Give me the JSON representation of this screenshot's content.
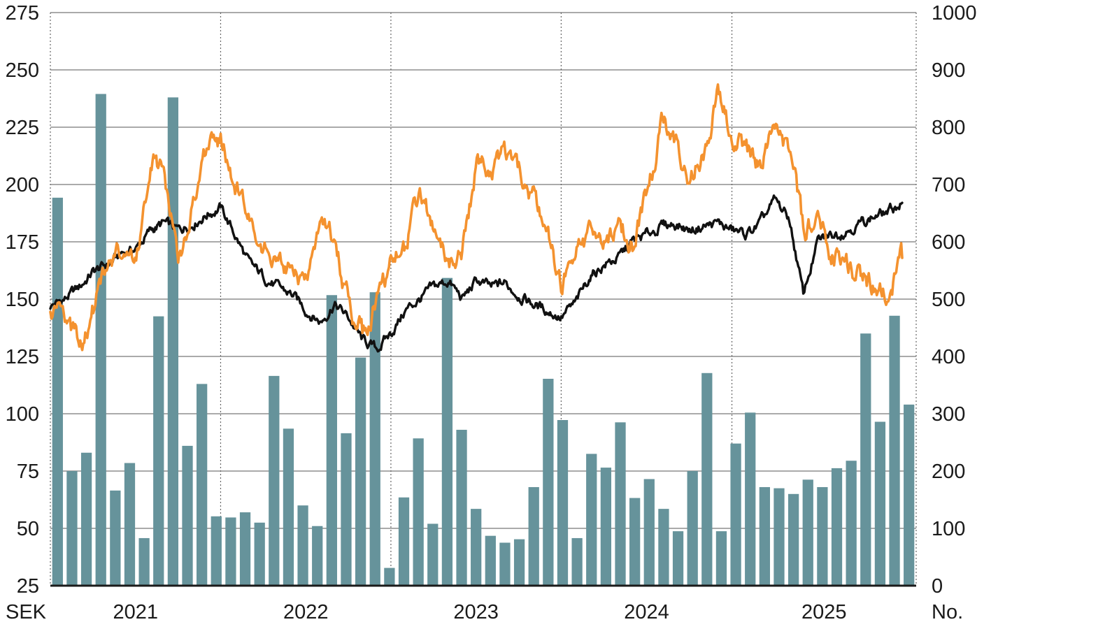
{
  "chart_data": {
    "type": "bar+line",
    "left_axis": {
      "unit_label": "SEK",
      "range": [
        25,
        275
      ],
      "ticks": [
        "25",
        "50",
        "75",
        "100",
        "125",
        "150",
        "175",
        "200",
        "225",
        "250",
        "275"
      ]
    },
    "right_axis": {
      "unit_label": "No.",
      "range": [
        0,
        1000
      ],
      "ticks": [
        "0",
        "100",
        "200",
        "300",
        "400",
        "500",
        "600",
        "700",
        "800",
        "900",
        "1000"
      ]
    },
    "x_axis": {
      "range": [
        "2020-07-01",
        "2025-07-31"
      ],
      "year_labels": [
        "2021",
        "2022",
        "2023",
        "2024",
        "2025"
      ],
      "year_dividers": [
        "2021-07-01",
        "2022-07-01",
        "2023-07-01",
        "2024-07-01"
      ],
      "grid": "dotted vertical at year boundaries, solid horizontal at left-axis ticks"
    },
    "colors": {
      "bars": "#66939b",
      "black_line": "#111111",
      "orange_line": "#f4922f",
      "grid": "#555555"
    },
    "bars": {
      "axis": "right",
      "months": [
        "2020-07",
        "2020-08",
        "2020-09",
        "2020-10",
        "2020-11",
        "2020-12",
        "2021-01",
        "2021-02",
        "2021-03",
        "2021-04",
        "2021-05",
        "2021-06",
        "2021-07",
        "2021-08",
        "2021-09",
        "2021-10",
        "2021-11",
        "2021-12",
        "2022-01",
        "2022-02",
        "2022-03",
        "2022-04",
        "2022-05",
        "2022-06",
        "2022-07",
        "2022-08",
        "2022-09",
        "2022-10",
        "2022-11",
        "2022-12",
        "2023-01",
        "2023-02",
        "2023-03",
        "2023-04",
        "2023-05",
        "2023-06",
        "2023-07",
        "2023-08",
        "2023-09",
        "2023-10",
        "2023-11",
        "2023-12",
        "2024-01",
        "2024-02",
        "2024-03",
        "2024-04",
        "2024-05",
        "2024-06",
        "2024-07",
        "2024-08",
        "2024-09",
        "2024-10",
        "2024-11",
        "2024-12",
        "2025-01",
        "2025-02",
        "2025-03",
        "2025-04",
        "2025-05",
        "2025-06"
      ],
      "values": [
        677,
        200,
        232,
        858,
        166,
        214,
        83,
        470,
        852,
        244,
        352,
        121,
        119,
        128,
        110,
        366,
        274,
        140,
        104,
        507,
        266,
        398,
        512,
        31,
        154,
        257,
        108,
        537,
        272,
        134,
        87,
        75,
        81,
        172,
        361,
        289,
        83,
        230,
        206,
        285,
        153,
        186,
        134,
        95,
        200,
        371,
        95,
        248,
        302,
        172,
        170,
        160,
        185,
        172,
        205,
        218,
        440,
        286,
        471,
        316
      ]
    },
    "series": [
      {
        "color": "#111111",
        "axis": "left",
        "points": [
          [
            "2020-07-01",
            147
          ],
          [
            "2020-08-01",
            150
          ],
          [
            "2020-09-01",
            155
          ],
          [
            "2020-10-01",
            162
          ],
          [
            "2020-11-01",
            165
          ],
          [
            "2020-12-01",
            170
          ],
          [
            "2021-01-01",
            172
          ],
          [
            "2021-02-01",
            180
          ],
          [
            "2021-03-01",
            183
          ],
          [
            "2021-04-01",
            180
          ],
          [
            "2021-05-01",
            183
          ],
          [
            "2021-06-01",
            187
          ],
          [
            "2021-07-01",
            190
          ],
          [
            "2021-08-01",
            178
          ],
          [
            "2021-09-01",
            165
          ],
          [
            "2021-10-01",
            160
          ],
          [
            "2021-11-01",
            155
          ],
          [
            "2021-12-01",
            152
          ],
          [
            "2022-01-01",
            145
          ],
          [
            "2022-02-01",
            140
          ],
          [
            "2022-03-01",
            148
          ],
          [
            "2022-04-01",
            142
          ],
          [
            "2022-05-01",
            132
          ],
          [
            "2022-06-01",
            128
          ],
          [
            "2022-07-01",
            135
          ],
          [
            "2022-08-01",
            145
          ],
          [
            "2022-09-01",
            150
          ],
          [
            "2022-10-01",
            155
          ],
          [
            "2022-11-01",
            158
          ],
          [
            "2022-12-01",
            150
          ],
          [
            "2023-01-01",
            158
          ],
          [
            "2023-02-01",
            155
          ],
          [
            "2023-03-01",
            157
          ],
          [
            "2023-04-01",
            152
          ],
          [
            "2023-05-01",
            148
          ],
          [
            "2023-06-01",
            145
          ],
          [
            "2023-07-01",
            142
          ],
          [
            "2023-08-01",
            148
          ],
          [
            "2023-09-01",
            160
          ],
          [
            "2023-10-01",
            165
          ],
          [
            "2023-11-01",
            168
          ],
          [
            "2023-12-01",
            175
          ],
          [
            "2024-01-01",
            178
          ],
          [
            "2024-02-01",
            182
          ],
          [
            "2024-03-01",
            183
          ],
          [
            "2024-04-01",
            180
          ],
          [
            "2024-05-01",
            182
          ],
          [
            "2024-06-01",
            183
          ],
          [
            "2024-07-01",
            180
          ],
          [
            "2024-08-01",
            178
          ],
          [
            "2024-09-01",
            183
          ],
          [
            "2024-10-01",
            193
          ],
          [
            "2024-11-01",
            185
          ],
          [
            "2024-12-01",
            152
          ],
          [
            "2025-01-01",
            175
          ],
          [
            "2025-02-01",
            178
          ],
          [
            "2025-03-01",
            180
          ],
          [
            "2025-04-01",
            183
          ],
          [
            "2025-05-01",
            186
          ],
          [
            "2025-06-01",
            188
          ],
          [
            "2025-07-01",
            192
          ]
        ]
      },
      {
        "color": "#f4922f",
        "axis": "left",
        "points": [
          [
            "2020-07-01",
            142
          ],
          [
            "2020-08-01",
            140
          ],
          [
            "2020-09-01",
            130
          ],
          [
            "2020-10-01",
            145
          ],
          [
            "2020-11-01",
            165
          ],
          [
            "2020-12-01",
            170
          ],
          [
            "2021-01-01",
            165
          ],
          [
            "2021-02-01",
            210
          ],
          [
            "2021-03-01",
            205
          ],
          [
            "2021-04-01",
            165
          ],
          [
            "2021-05-01",
            190
          ],
          [
            "2021-06-01",
            215
          ],
          [
            "2021-07-01",
            220
          ],
          [
            "2021-08-01",
            200
          ],
          [
            "2021-09-01",
            185
          ],
          [
            "2021-10-01",
            175
          ],
          [
            "2021-11-01",
            165
          ],
          [
            "2021-12-01",
            160
          ],
          [
            "2022-01-01",
            155
          ],
          [
            "2022-02-01",
            188
          ],
          [
            "2022-03-01",
            175
          ],
          [
            "2022-04-01",
            150
          ],
          [
            "2022-05-01",
            135
          ],
          [
            "2022-06-01",
            150
          ],
          [
            "2022-07-01",
            165
          ],
          [
            "2022-08-01",
            172
          ],
          [
            "2022-09-01",
            195
          ],
          [
            "2022-10-01",
            180
          ],
          [
            "2022-11-01",
            165
          ],
          [
            "2022-12-01",
            170
          ],
          [
            "2023-01-01",
            210
          ],
          [
            "2023-02-01",
            205
          ],
          [
            "2023-03-01",
            212
          ],
          [
            "2023-04-01",
            205
          ],
          [
            "2023-05-01",
            195
          ],
          [
            "2023-06-01",
            180
          ],
          [
            "2023-07-01",
            155
          ],
          [
            "2023-08-01",
            170
          ],
          [
            "2023-09-01",
            178
          ],
          [
            "2023-10-01",
            178
          ],
          [
            "2023-11-01",
            182
          ],
          [
            "2023-12-01",
            175
          ],
          [
            "2024-01-01",
            195
          ],
          [
            "2024-02-01",
            225
          ],
          [
            "2024-03-01",
            220
          ],
          [
            "2024-04-01",
            200
          ],
          [
            "2024-05-01",
            215
          ],
          [
            "2024-06-01",
            240
          ],
          [
            "2024-07-01",
            220
          ],
          [
            "2024-08-01",
            215
          ],
          [
            "2024-09-01",
            205
          ],
          [
            "2024-10-01",
            225
          ],
          [
            "2024-11-01",
            215
          ],
          [
            "2024-12-01",
            180
          ],
          [
            "2025-01-01",
            185
          ],
          [
            "2025-02-01",
            170
          ],
          [
            "2025-03-01",
            165
          ],
          [
            "2025-04-01",
            160
          ],
          [
            "2025-05-01",
            155
          ],
          [
            "2025-06-01",
            152
          ],
          [
            "2025-07-01",
            168
          ]
        ]
      }
    ]
  }
}
